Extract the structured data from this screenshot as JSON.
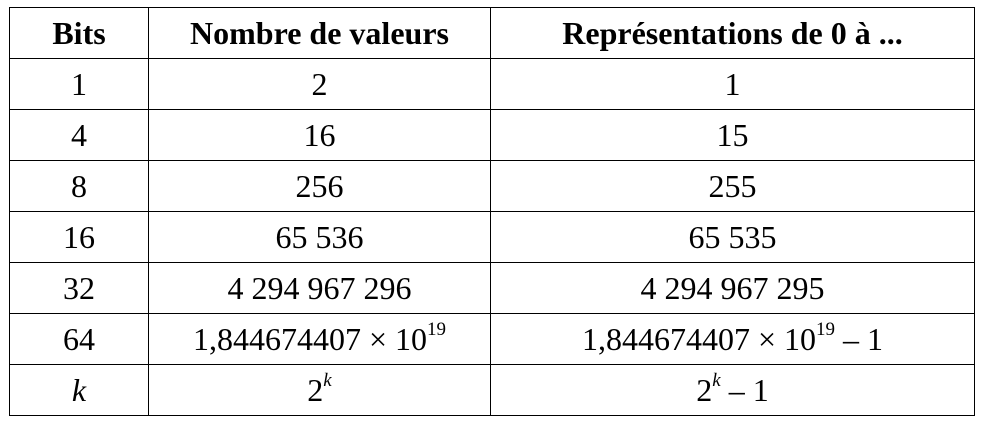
{
  "table": {
    "headers": [
      "Bits",
      "Nombre de valeurs",
      "Représentations de 0 à ..."
    ],
    "rows": [
      {
        "bits": "1",
        "values": "2",
        "range": "1"
      },
      {
        "bits": "4",
        "values": "16",
        "range": "15"
      },
      {
        "bits": "8",
        "values": "256",
        "range": "255"
      },
      {
        "bits": "16",
        "values": "65 536",
        "range": "65 535"
      },
      {
        "bits": "32",
        "values": "4 294 967 296",
        "range": "4 294 967 295"
      },
      {
        "bits": "64",
        "values_mantissa": "1,844674407 × 10",
        "values_exponent": "19",
        "range_mantissa": "1,844674407 × 10",
        "range_exponent": "19",
        "range_suffix": " – 1"
      },
      {
        "bits": "k",
        "values_base": "2",
        "values_exponent": "k",
        "range_base": "2",
        "range_exponent": "k",
        "range_suffix": " – 1"
      }
    ]
  }
}
